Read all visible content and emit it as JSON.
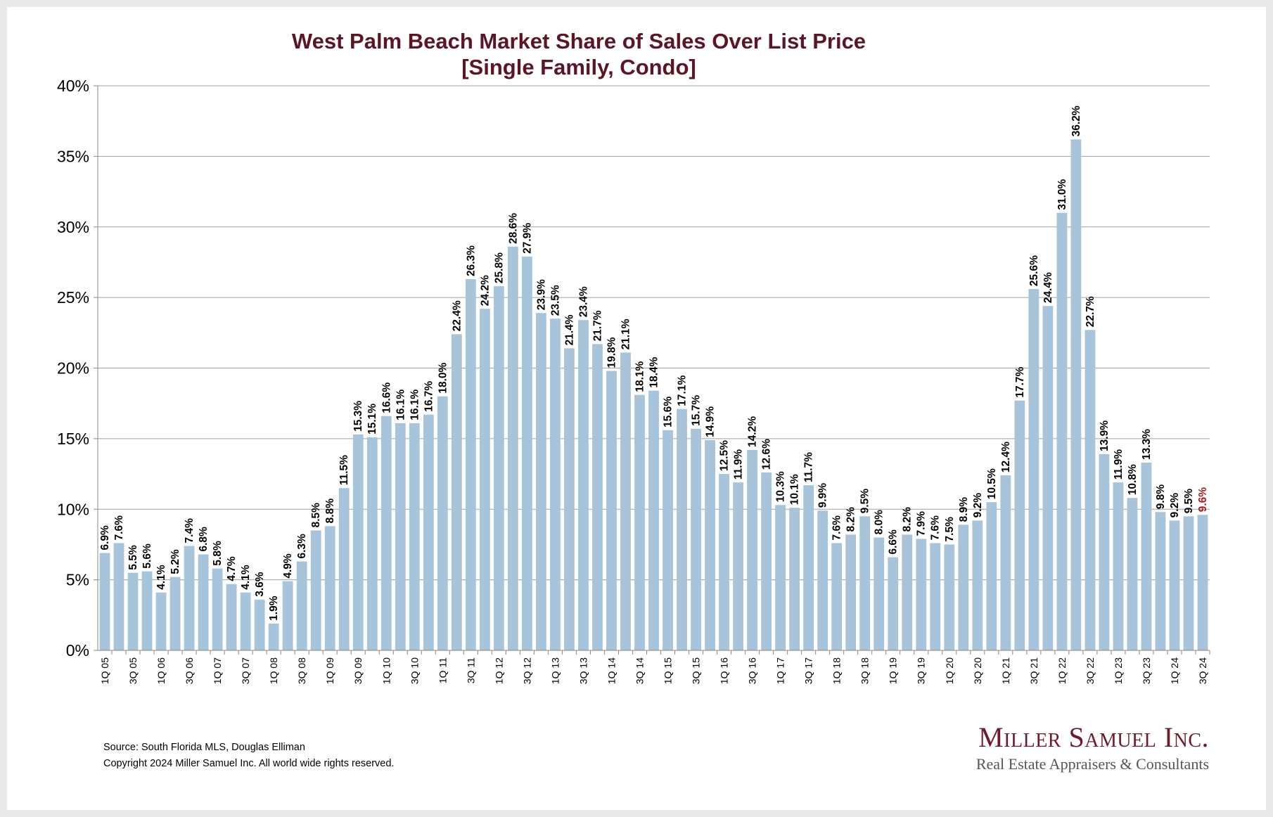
{
  "chart_data": {
    "type": "bar",
    "title": [
      "West Palm Beach Market Share of Sales Over List Price",
      "[Single Family, Condo]"
    ],
    "xlabel": "",
    "ylabel": "",
    "ylim": [
      0,
      40
    ],
    "yticks": [
      "0%",
      "5%",
      "10%",
      "15%",
      "20%",
      "25%",
      "30%",
      "35%",
      "40%"
    ],
    "grid": true,
    "categories": [
      "1Q 05",
      "2Q 05",
      "3Q 05",
      "4Q 05",
      "1Q 06",
      "2Q 06",
      "3Q 06",
      "4Q 06",
      "1Q 07",
      "2Q 07",
      "3Q 07",
      "4Q 07",
      "1Q 08",
      "2Q 08",
      "3Q 08",
      "4Q 08",
      "1Q 09",
      "2Q 09",
      "3Q 09",
      "4Q 09",
      "1Q 10",
      "2Q 10",
      "3Q 10",
      "4Q 10",
      "1Q 11",
      "2Q 11",
      "3Q 11",
      "4Q 11",
      "1Q 12",
      "2Q 12",
      "3Q 12",
      "4Q 12",
      "1Q 13",
      "2Q 13",
      "3Q 13",
      "4Q 13",
      "1Q 14",
      "2Q 14",
      "3Q 14",
      "4Q 14",
      "1Q 15",
      "2Q 15",
      "3Q 15",
      "4Q 15",
      "1Q 16",
      "2Q 16",
      "3Q 16",
      "4Q 16",
      "1Q 17",
      "2Q 17",
      "3Q 17",
      "4Q 17",
      "1Q 18",
      "2Q 18",
      "3Q 18",
      "4Q 18",
      "1Q 19",
      "2Q 19",
      "3Q 19",
      "4Q 19",
      "1Q 20",
      "2Q 20",
      "3Q 20",
      "4Q 20",
      "1Q 21",
      "2Q 21",
      "3Q 21",
      "4Q 21",
      "1Q 22",
      "2Q 22",
      "3Q 22",
      "4Q 22",
      "1Q 23",
      "2Q 23",
      "3Q 23",
      "4Q 23",
      "1Q 24",
      "2Q 24",
      "3Q 24"
    ],
    "shown_tick_labels": [
      "1Q 05",
      "3Q 05",
      "1Q 06",
      "3Q 06",
      "1Q 07",
      "3Q 07",
      "1Q 08",
      "3Q 08",
      "1Q 09",
      "3Q 09",
      "1Q 10",
      "3Q 10",
      "1Q 11",
      "3Q 11",
      "1Q 12",
      "3Q 12",
      "1Q 13",
      "3Q 13",
      "1Q 14",
      "3Q 14",
      "1Q 15",
      "3Q 15",
      "1Q 16",
      "3Q 16",
      "1Q 17",
      "3Q 17",
      "1Q 18",
      "3Q 18",
      "1Q 19",
      "3Q 19",
      "1Q 20",
      "3Q 20",
      "1Q 21",
      "3Q 21",
      "1Q 22",
      "3Q 22",
      "1Q 23",
      "3Q 23",
      "1Q 24",
      "3Q 24"
    ],
    "series": [
      {
        "name": "Market Share of Sales Over List Price",
        "values": [
          6.9,
          7.6,
          5.5,
          5.6,
          4.1,
          5.2,
          7.4,
          6.8,
          5.8,
          4.7,
          4.1,
          3.6,
          1.9,
          4.9,
          6.3,
          8.5,
          8.8,
          11.5,
          15.3,
          15.1,
          16.6,
          16.1,
          16.1,
          16.7,
          18.0,
          22.4,
          26.3,
          24.2,
          25.8,
          28.6,
          27.9,
          23.9,
          23.5,
          21.4,
          23.4,
          21.7,
          19.8,
          21.1,
          18.1,
          18.4,
          15.6,
          17.1,
          15.7,
          14.9,
          12.5,
          11.9,
          14.2,
          12.6,
          10.3,
          10.1,
          11.7,
          9.9,
          7.6,
          8.2,
          9.5,
          8.0,
          6.6,
          8.2,
          7.9,
          7.6,
          7.5,
          8.9,
          9.2,
          10.5,
          12.4,
          17.7,
          25.6,
          24.4,
          31.0,
          36.2,
          22.7,
          13.9,
          11.9,
          10.8,
          13.3,
          9.8,
          9.2,
          9.5,
          9.6
        ],
        "labels": [
          "6.9%",
          "7.6%",
          "5.5%",
          "5.6%",
          "4.1%",
          "5.2%",
          "7.4%",
          "6.8%",
          "5.8%",
          "4.7%",
          "4.1%",
          "3.6%",
          "1.9%",
          "4.9%",
          "6.3%",
          "8.5%",
          "8.8%",
          "11.5%",
          "15.3%",
          "15.1%",
          "16.6%",
          "16.1%",
          "16.1%",
          "16.7%",
          "18.0%",
          "22.4%",
          "26.3%",
          "24.2%",
          "25.8%",
          "28.6%",
          "27.9%",
          "23.9%",
          "23.5%",
          "21.4%",
          "23.4%",
          "21.7%",
          "19.8%",
          "21.1%",
          "18.1%",
          "18.4%",
          "15.6%",
          "17.1%",
          "15.7%",
          "14.9%",
          "12.5%",
          "11.9%",
          "14.2%",
          "12.6%",
          "10.3%",
          "10.1%",
          "11.7%",
          "9.9%",
          "7.6%",
          "8.2%",
          "9.5%",
          "8.0%",
          "6.6%",
          "8.2%",
          "7.9%",
          "7.6%",
          "7.5%",
          "8.9%",
          "9.2%",
          "10.5%",
          "12.4%",
          "17.7%",
          "25.6%",
          "24.4%",
          "31.0%",
          "36.2%",
          "22.7%",
          "13.9%",
          "11.9%",
          "10.8%",
          "13.3%",
          "9.8%",
          "9.2%",
          "9.5%",
          "9.6%"
        ]
      }
    ],
    "colors": {
      "bar": "#a7c4db",
      "title": "#5c1526",
      "highlight_label": "#a81c1c"
    }
  },
  "footer": {
    "source": "Source: South Florida MLS, Douglas Elliman",
    "copyright": "Copyright 2024 Miller Samuel Inc.  All world wide rights reserved."
  },
  "logo": {
    "name": "Miller Samuel Inc.",
    "tagline": "Real Estate Appraisers & Consultants"
  }
}
